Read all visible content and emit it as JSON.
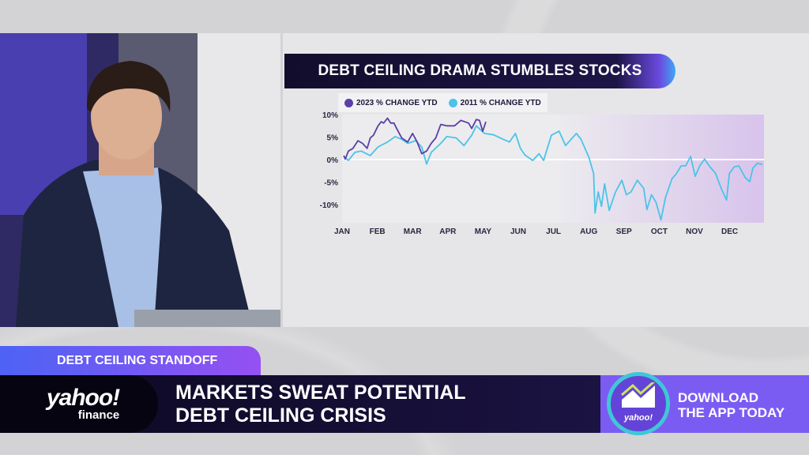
{
  "lower_third": {
    "strap": "DEBT CEILING STANDOFF",
    "headline_line1": "MARKETS SWEAT POTENTIAL",
    "headline_line2": "DEBT CEILING CRISIS",
    "logo_main": "yahoo!",
    "logo_sub": "finance",
    "promo_line1": "DOWNLOAD",
    "promo_line2": "THE APP TODAY",
    "promo_icon_text": "yahoo!"
  },
  "colors": {
    "series_2023": "#5b3fa6",
    "series_2011": "#4cc3e8",
    "accent": "#7b5cf2"
  },
  "chart_data": {
    "type": "line",
    "title": "DEBT CEILING DRAMA STUMBLES STOCKS",
    "legend_placement": "top-left",
    "xlabel": "",
    "ylabel": "",
    "x_ticks": [
      "JAN",
      "FEB",
      "MAR",
      "APR",
      "MAY",
      "JUN",
      "JUL",
      "AUG",
      "SEP",
      "OCT",
      "NOV",
      "DEC"
    ],
    "y_ticks": [
      "10%",
      "5%",
      "0%",
      "-5%",
      "-10%"
    ],
    "y_tick_values": [
      10,
      5,
      0,
      -5,
      -10
    ],
    "ylim": [
      -14,
      10.5
    ],
    "xlim": [
      0,
      12
    ],
    "x_unit": "month index (JAN=0)",
    "grid": false,
    "series": [
      {
        "name": "2023 % CHANGE YTD",
        "x": [
          0.05,
          0.09,
          0.18,
          0.31,
          0.45,
          0.58,
          0.71,
          0.8,
          0.89,
          1.02,
          1.11,
          1.18,
          1.29,
          1.38,
          1.47,
          1.55,
          1.69,
          1.86,
          2.0,
          2.13,
          2.26,
          2.4,
          2.53,
          2.66,
          2.8,
          2.97,
          3.19,
          3.37,
          3.59,
          3.68,
          3.81,
          3.9,
          3.99,
          4.08
        ],
        "y": [
          0.9,
          0.1,
          1.9,
          2.5,
          4.2,
          3.6,
          2.5,
          4.8,
          5.4,
          7.5,
          8.4,
          8.1,
          9.2,
          8.1,
          8.1,
          6.9,
          4.8,
          3.9,
          5.8,
          3.9,
          1.3,
          1.9,
          3.6,
          4.8,
          7.8,
          7.5,
          7.5,
          8.7,
          8.1,
          6.9,
          8.9,
          8.7,
          6.3,
          8.4
        ]
      },
      {
        "name": "2011 % CHANGE YTD",
        "x": [
          0.05,
          0.18,
          0.36,
          0.54,
          0.8,
          1.02,
          1.29,
          1.51,
          1.69,
          1.86,
          2.09,
          2.26,
          2.4,
          2.53,
          2.8,
          2.97,
          3.24,
          3.46,
          3.68,
          3.81,
          4.04,
          4.3,
          4.57,
          4.75,
          4.92,
          5.06,
          5.19,
          5.41,
          5.59,
          5.72,
          5.94,
          6.16,
          6.34,
          6.65,
          6.78,
          7.01,
          7.14,
          7.18,
          7.27,
          7.36,
          7.45,
          7.58,
          7.76,
          7.94,
          8.07,
          8.2,
          8.38,
          8.56,
          8.65,
          8.78,
          8.91,
          9.05,
          9.18,
          9.36,
          9.49,
          9.62,
          9.75,
          9.89,
          10.02,
          10.15,
          10.29,
          10.42,
          10.6,
          10.77,
          10.91,
          10.99,
          11.13,
          11.26,
          11.44,
          11.57,
          11.66,
          11.79,
          11.93
        ],
        "y": [
          0.7,
          -0.2,
          1.6,
          1.9,
          0.9,
          2.8,
          3.9,
          5.1,
          4.5,
          3.6,
          4.2,
          2.8,
          -1.0,
          1.6,
          3.6,
          5.1,
          4.8,
          3.1,
          5.4,
          7.5,
          5.8,
          5.5,
          4.5,
          3.9,
          5.8,
          2.5,
          1.0,
          -0.2,
          1.3,
          -0.2,
          5.4,
          6.3,
          3.1,
          5.8,
          4.5,
          0.4,
          -3.1,
          -11.9,
          -7.2,
          -10.4,
          -5.4,
          -11.3,
          -7.2,
          -4.6,
          -7.8,
          -7.2,
          -4.6,
          -6.4,
          -11.1,
          -7.8,
          -9.5,
          -13.4,
          -8.4,
          -4.3,
          -3.1,
          -1.4,
          -1.4,
          0.7,
          -3.7,
          -1.4,
          0.1,
          -1.4,
          -3.1,
          -6.6,
          -9.0,
          -3.1,
          -1.6,
          -1.4,
          -4.0,
          -4.9,
          -1.9,
          -0.8,
          -1.1
        ]
      }
    ]
  }
}
